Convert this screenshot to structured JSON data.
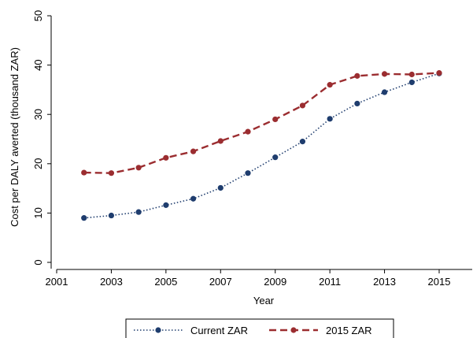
{
  "chart_data": {
    "type": "line",
    "title": "",
    "xlabel": "Year",
    "ylabel": "Cost per DALY averted (thousand ZAR)",
    "xlim": [
      2001,
      2015.9
    ],
    "ylim": [
      0,
      50
    ],
    "x_ticks": [
      2001,
      2003,
      2005,
      2007,
      2009,
      2011,
      2013,
      2015
    ],
    "y_ticks": [
      0,
      10,
      20,
      30,
      40,
      50
    ],
    "grid": false,
    "legend_position": "bottom",
    "x": [
      2002,
      2003,
      2004,
      2005,
      2006,
      2007,
      2008,
      2009,
      2010,
      2011,
      2012,
      2013,
      2014,
      2015
    ],
    "series": [
      {
        "name": "Current ZAR",
        "color": "#1f3d6e",
        "line_style": "dotted",
        "values": [
          9.0,
          9.5,
          10.2,
          11.6,
          12.9,
          15.1,
          18.1,
          21.3,
          24.5,
          29.1,
          32.2,
          34.5,
          36.5,
          38.3
        ]
      },
      {
        "name": "2015 ZAR",
        "color": "#9b2d30",
        "line_style": "dashed",
        "values": [
          18.2,
          18.1,
          19.2,
          21.2,
          22.5,
          24.6,
          26.5,
          29.0,
          31.8,
          36.0,
          37.8,
          38.2,
          38.1,
          38.4
        ]
      }
    ]
  }
}
